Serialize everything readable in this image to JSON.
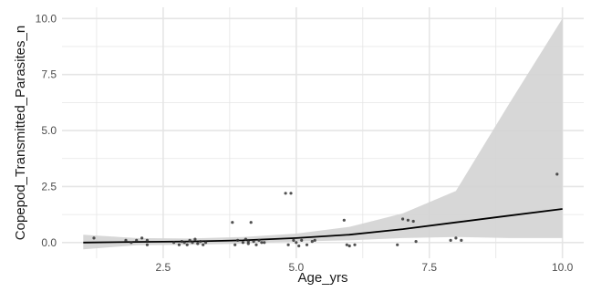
{
  "chart_data": {
    "type": "scatter",
    "title": "",
    "xlabel": "Age_yrs",
    "ylabel": "Copepod_Transmitted_Parasites_n",
    "xlim": [
      0.6,
      10.4
    ],
    "ylim": [
      -0.7,
      10.5
    ],
    "x_ticks": [
      2.5,
      5.0,
      7.5,
      10.0
    ],
    "x_tick_labels": [
      "2.5",
      "5.0",
      "7.5",
      "10.0"
    ],
    "y_ticks": [
      0.0,
      2.5,
      5.0,
      7.5,
      10.0
    ],
    "y_tick_labels": [
      "0.0",
      "2.5",
      "5.0",
      "7.5",
      "10.0"
    ],
    "grid": true,
    "colors": {
      "points": "#333333",
      "fit_line": "#000000",
      "ribbon": "#d3d3d3",
      "grid": "#e5e5e5"
    },
    "points": [
      [
        1.2,
        0.2
      ],
      [
        1.8,
        0.1
      ],
      [
        1.9,
        0.0
      ],
      [
        2.0,
        0.1
      ],
      [
        2.1,
        0.2
      ],
      [
        2.2,
        -0.1
      ],
      [
        2.2,
        0.1
      ],
      [
        2.7,
        0.0
      ],
      [
        2.8,
        -0.1
      ],
      [
        2.85,
        0.05
      ],
      [
        2.9,
        0.0
      ],
      [
        2.95,
        -0.1
      ],
      [
        3.0,
        0.1
      ],
      [
        3.05,
        0.0
      ],
      [
        3.1,
        0.15
      ],
      [
        3.15,
        -0.05
      ],
      [
        3.2,
        0.05
      ],
      [
        3.25,
        -0.1
      ],
      [
        3.3,
        0.0
      ],
      [
        3.8,
        0.9
      ],
      [
        3.85,
        -0.1
      ],
      [
        3.9,
        0.1
      ],
      [
        4.0,
        0.0
      ],
      [
        4.05,
        0.15
      ],
      [
        4.1,
        0.05
      ],
      [
        4.1,
        -0.05
      ],
      [
        4.15,
        0.9
      ],
      [
        4.2,
        0.05
      ],
      [
        4.25,
        -0.1
      ],
      [
        4.3,
        0.1
      ],
      [
        4.35,
        0.0
      ],
      [
        4.4,
        0.0
      ],
      [
        4.8,
        2.2
      ],
      [
        4.85,
        -0.1
      ],
      [
        4.9,
        2.2
      ],
      [
        4.95,
        0.1
      ],
      [
        5.0,
        0.0
      ],
      [
        5.05,
        -0.15
      ],
      [
        5.1,
        0.1
      ],
      [
        5.2,
        -0.1
      ],
      [
        5.3,
        0.05
      ],
      [
        5.35,
        0.1
      ],
      [
        5.9,
        1.0
      ],
      [
        5.95,
        -0.1
      ],
      [
        6.0,
        -0.15
      ],
      [
        6.1,
        -0.1
      ],
      [
        6.9,
        -0.1
      ],
      [
        7.0,
        1.05
      ],
      [
        7.1,
        1.0
      ],
      [
        7.2,
        0.95
      ],
      [
        7.25,
        0.05
      ],
      [
        7.9,
        0.1
      ],
      [
        8.0,
        0.2
      ],
      [
        8.1,
        0.1
      ],
      [
        9.9,
        3.05
      ]
    ],
    "fit_line": {
      "x": [
        1.0,
        2.0,
        3.0,
        4.0,
        5.0,
        6.0,
        7.0,
        8.0,
        9.0,
        10.0
      ],
      "y": [
        0.0,
        0.03,
        0.05,
        0.1,
        0.2,
        0.35,
        0.6,
        0.9,
        1.2,
        1.5
      ]
    },
    "confidence_band": {
      "x": [
        1.0,
        2.0,
        3.0,
        4.0,
        5.0,
        6.0,
        7.0,
        8.0,
        9.0,
        10.0
      ],
      "lower": [
        -0.3,
        -0.12,
        -0.1,
        -0.05,
        0.05,
        0.1,
        0.2,
        0.25,
        0.2,
        0.2
      ],
      "upper": [
        0.35,
        0.2,
        0.18,
        0.25,
        0.4,
        0.7,
        1.3,
        2.3,
        6.2,
        10.0
      ]
    }
  }
}
